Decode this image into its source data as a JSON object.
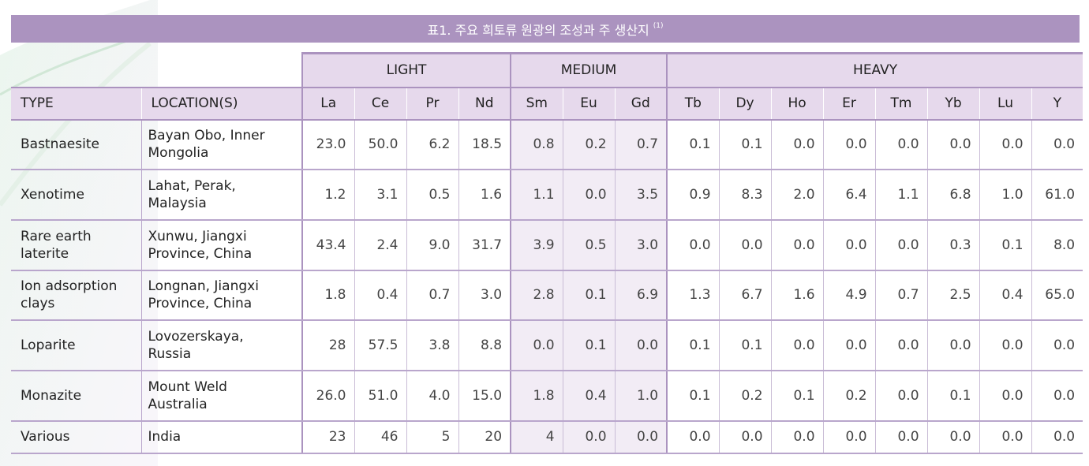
{
  "title": "표1. 주요 희토류 원광의 조성과 주 생산지",
  "title_note": "(1)",
  "groups": [
    "LIGHT",
    "MEDIUM",
    "HEAVY"
  ],
  "headers": {
    "type": "TYPE",
    "location": "LOCATION(S)",
    "elements": [
      "La",
      "Ce",
      "Pr",
      "Nd",
      "Sm",
      "Eu",
      "Gd",
      "Tb",
      "Dy",
      "Ho",
      "Er",
      "Tm",
      "Yb",
      "Lu",
      "Y"
    ]
  },
  "rows": [
    {
      "type": [
        "Bastnaesite"
      ],
      "location": [
        "Bayan Obo, Inner",
        "Mongolia"
      ],
      "values": [
        "23.0",
        "50.0",
        "6.2",
        "18.5",
        "0.8",
        "0.2",
        "0.7",
        "0.1",
        "0.1",
        "0.0",
        "0.0",
        "0.0",
        "0.0",
        "0.0",
        "0.0"
      ]
    },
    {
      "type": [
        "Xenotime"
      ],
      "location": [
        "Lahat, Perak,",
        "Malaysia"
      ],
      "values": [
        "1.2",
        "3.1",
        "0.5",
        "1.6",
        "1.1",
        "0.0",
        "3.5",
        "0.9",
        "8.3",
        "2.0",
        "6.4",
        "1.1",
        "6.8",
        "1.0",
        "61.0"
      ]
    },
    {
      "type": [
        "Rare earth",
        "laterite"
      ],
      "location": [
        "Xunwu, Jiangxi",
        "Province, China"
      ],
      "values": [
        "43.4",
        "2.4",
        "9.0",
        "31.7",
        "3.9",
        "0.5",
        "3.0",
        "0.0",
        "0.0",
        "0.0",
        "0.0",
        "0.0",
        "0.3",
        "0.1",
        "8.0"
      ]
    },
    {
      "type": [
        "Ion adsorption",
        "clays"
      ],
      "location": [
        "Longnan, Jiangxi",
        "Province, China"
      ],
      "values": [
        "1.8",
        "0.4",
        "0.7",
        "3.0",
        "2.8",
        "0.1",
        "6.9",
        "1.3",
        "6.7",
        "1.6",
        "4.9",
        "0.7",
        "2.5",
        "0.4",
        "65.0"
      ]
    },
    {
      "type": [
        "Loparite"
      ],
      "location": [
        "Lovozerskaya,",
        "Russia"
      ],
      "values": [
        "28",
        "57.5",
        "3.8",
        "8.8",
        "0.0",
        "0.1",
        "0.0",
        "0.1",
        "0.1",
        "0.0",
        "0.0",
        "0.0",
        "0.0",
        "0.0",
        "0.0"
      ]
    },
    {
      "type": [
        "Monazite"
      ],
      "location": [
        "Mount Weld",
        "Australia"
      ],
      "values": [
        "26.0",
        "51.0",
        "4.0",
        "15.0",
        "1.8",
        "0.4",
        "1.0",
        "0.1",
        "0.2",
        "0.1",
        "0.2",
        "0.0",
        "0.1",
        "0.0",
        "0.0"
      ]
    },
    {
      "type": [
        "Various"
      ],
      "location": [
        "India"
      ],
      "values": [
        "23",
        "46",
        "5",
        "20",
        "4",
        "0.0",
        "0.0",
        "0.0",
        "0.0",
        "0.0",
        "0.0",
        "0.0",
        "0.0",
        "0.0",
        "0.0"
      ]
    }
  ],
  "colors": {
    "title_bar": "#ab93bf",
    "header_fill": "#e6d9ec",
    "border": "#ab93bf",
    "medium_column_fill": "#f2ecf5"
  }
}
